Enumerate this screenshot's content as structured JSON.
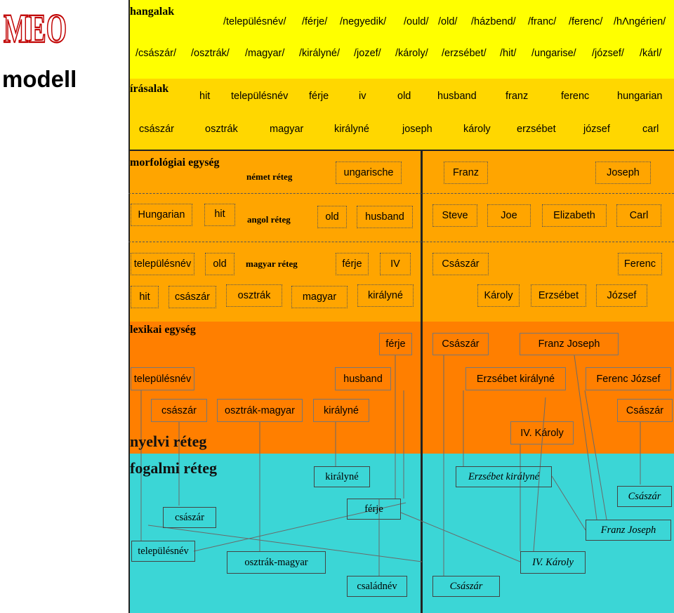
{
  "logo": {
    "text": "MEO",
    "colors": [
      "#c00000",
      "#ffffff"
    ]
  },
  "side_title": "modell",
  "colors": {
    "hangalak": "#ffff00",
    "irasalak": "#ffd700",
    "morfologiai": "#ffa500",
    "lexikai": "#ff7f00",
    "fogalmi": "#3bd6d6"
  },
  "hangalak": {
    "heading": "hangalak",
    "row1": [
      "/településnév/",
      "/férje/",
      "/negyedik/",
      "/ould/",
      "/old/",
      "/házbend/",
      "/franc/",
      "/ferenc/",
      "/hΛngérien/"
    ],
    "row2": [
      "/császár/",
      "/osztrák/",
      "/magyar/",
      "/királyné/",
      "/jozef/",
      "/károly/",
      "/erzsébet/",
      "/hit/",
      "/ungarise/",
      "/józsef/",
      "/kárl/"
    ]
  },
  "irasalak": {
    "heading": "írásalak",
    "row1": [
      "hit",
      "településnév",
      "férje",
      "iv",
      "old",
      "husband",
      "franz",
      "ferenc",
      "hungarian"
    ],
    "row2": [
      "császár",
      "osztrák",
      "magyar",
      "királyné",
      "joseph",
      "károly",
      "erzsébet",
      "józsef",
      "carl"
    ]
  },
  "morfologiai": {
    "heading": "morfológiai egység",
    "nemet_label": "német réteg",
    "angol_label": "angol réteg",
    "magyar_label": "magyar réteg",
    "nemet_boxes": [
      "ungarische",
      "Franz",
      "Joseph"
    ],
    "angol_boxes": [
      "Hungarian",
      "hit",
      "old",
      "husband",
      "Steve",
      "Joe",
      "Elizabeth",
      "Carl"
    ],
    "magyar_row1": [
      "településnév",
      "old",
      "férje",
      "IV",
      "Császár",
      "Ferenc"
    ],
    "magyar_row2": [
      "hit",
      "császár",
      "osztrák",
      "magyar",
      "királyné",
      "Károly",
      "Erzsébet",
      "József"
    ]
  },
  "lexikai": {
    "heading": "lexikai egység",
    "nyelvi_label": "nyelvi réteg",
    "boxes": [
      "férje",
      "Császár",
      "Franz Joseph",
      "településnév",
      "husband",
      "Erzsébet királyné",
      "Ferenc József",
      "császár",
      "osztrák-magyar",
      "királyné",
      "Császár",
      "IV. Károly"
    ]
  },
  "fogalmi": {
    "heading": "fogalmi réteg",
    "boxes": [
      "királyné",
      "Erzsébet királyné",
      "Császár",
      "férje",
      "császár",
      "Franz Joseph",
      "településnév",
      "osztrák-magyar",
      "IV. Károly",
      "családnév",
      "Császár"
    ]
  }
}
